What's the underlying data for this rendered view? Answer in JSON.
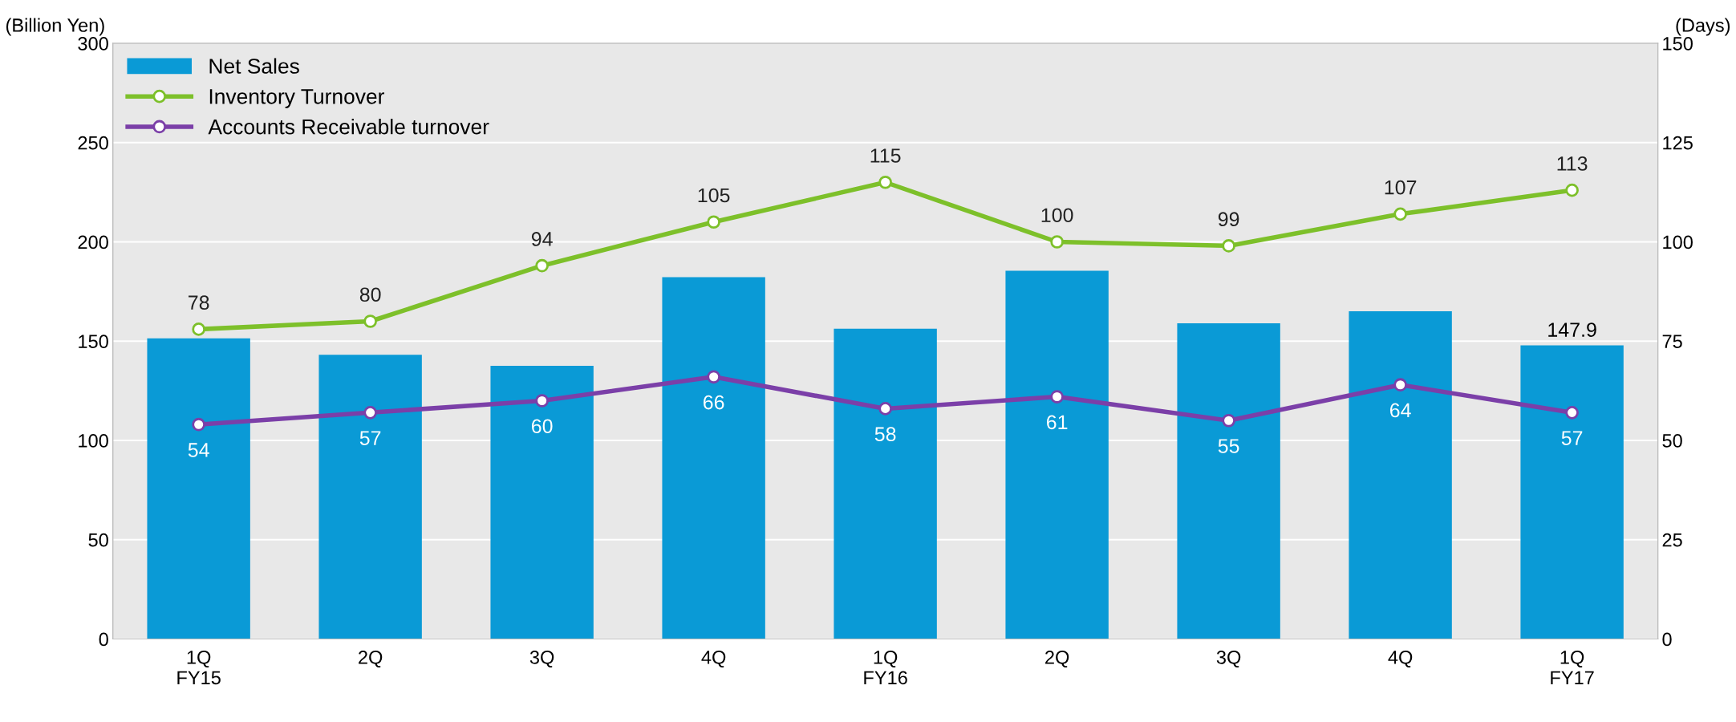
{
  "chart_data": {
    "type": "bar",
    "categories": [
      "1Q\nFY15",
      "2Q",
      "3Q",
      "4Q",
      "1Q\nFY16",
      "2Q",
      "3Q",
      "4Q",
      "1Q\nFY17"
    ],
    "ylabel": "(Billion Yen)",
    "y2label": "(Days)",
    "series": [
      {
        "name": "Net Sales",
        "color": "#0a9ad6",
        "values": [
          151.4,
          143.1,
          137.6,
          182.2,
          156.3,
          185.5,
          159.0,
          165.1,
          147.9
        ],
        "value_labels": [
          null,
          null,
          null,
          null,
          null,
          null,
          null,
          null,
          "147.9"
        ]
      },
      {
        "name": "Inventory Turnover",
        "type": "line",
        "axis": "y2",
        "color": "#7dc02a",
        "values": [
          78,
          80,
          94,
          105,
          115,
          100,
          99,
          107,
          113
        ],
        "value_labels": [
          "78",
          "80",
          "94",
          "105",
          "115",
          "100",
          "99",
          "107",
          "113"
        ]
      },
      {
        "name": "Accounts Receivable turnover",
        "type": "line",
        "axis": "y2",
        "color": "#7b3fa8",
        "values": [
          54,
          57,
          60,
          66,
          58,
          61,
          55,
          64,
          57
        ],
        "value_labels": [
          "54",
          "57",
          "60",
          "66",
          "58",
          "61",
          "55",
          "64",
          "57"
        ]
      }
    ],
    "ylim": [
      0,
      300
    ],
    "yticks": [
      0,
      50,
      100,
      150,
      200,
      250,
      300
    ],
    "y2lim": [
      0,
      150
    ],
    "y2ticks": [
      0,
      25,
      50,
      75,
      100,
      125,
      150
    ],
    "grid": "y",
    "legend": "top left",
    "marker": "circle",
    "line_style": "solid"
  }
}
